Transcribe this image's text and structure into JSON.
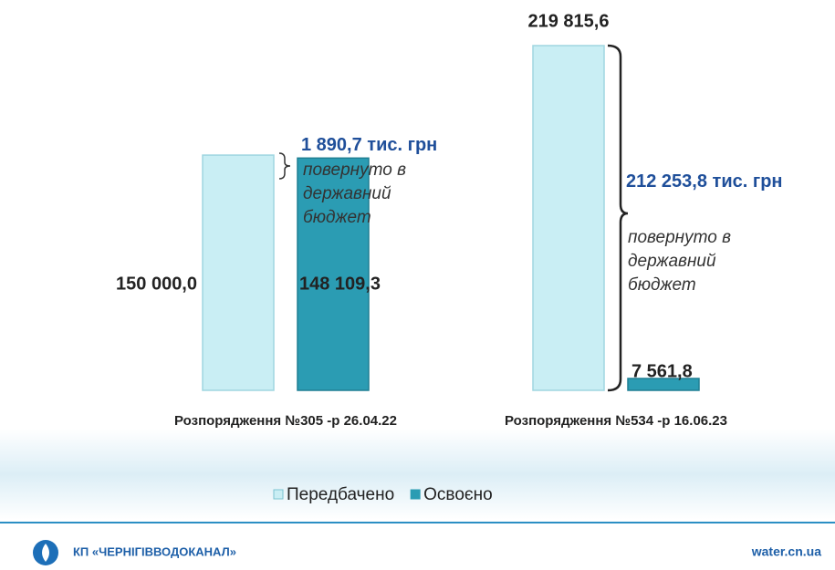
{
  "chart_data": {
    "type": "bar",
    "categories": [
      "Розпорядження №305 -р 26.04.22",
      "Розпорядження №534 -р 16.06.23"
    ],
    "series": [
      {
        "name": "Передбачено",
        "color": "#c9eef4",
        "values": [
          150000.0,
          219815.6
        ],
        "value_labels": [
          "150 000,0",
          "219 815,6"
        ]
      },
      {
        "name": "Освоєно",
        "color": "#2b9cb3",
        "values": [
          148109.3,
          7561.8
        ],
        "value_labels": [
          "148 109,3",
          "7 561,8"
        ]
      }
    ],
    "annotations": [
      "1 890,7 тис. грн",
      "повернуто в\nдержавний\n бюджет",
      "212 253,8 тис. грн",
      "повернуто в\nдержавний\nбюджет"
    ]
  },
  "footer": {
    "org": "КП «ЧЕРНІГІВВОДОКАНАЛ»",
    "site": "water.cn.ua"
  }
}
